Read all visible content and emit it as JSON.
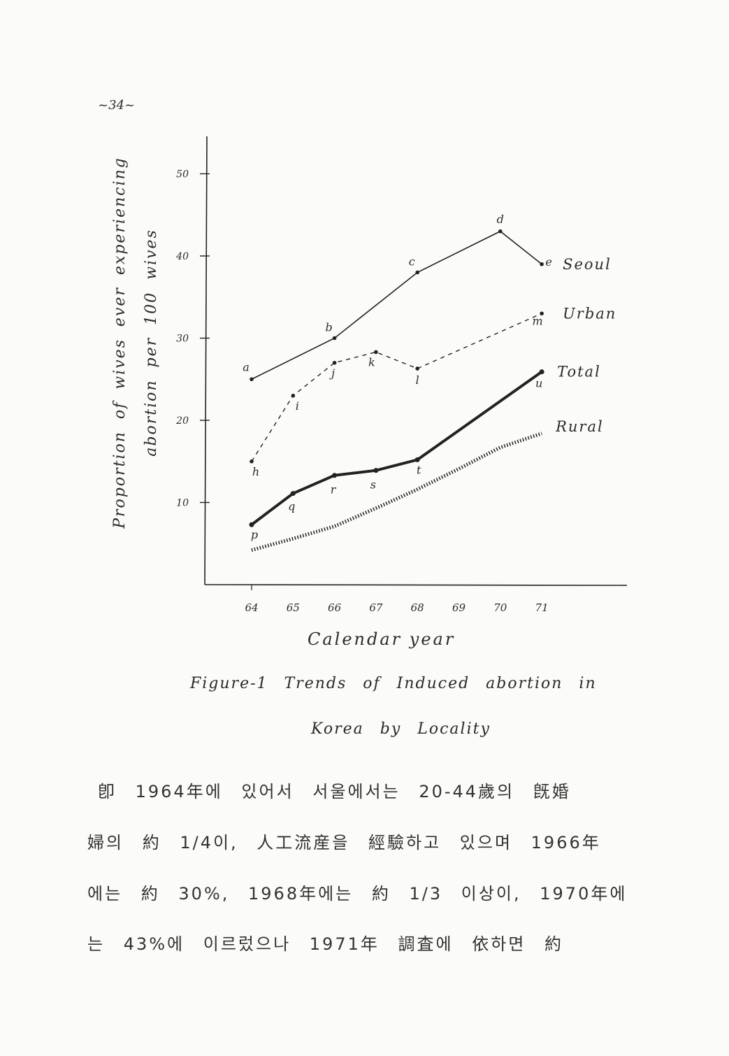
{
  "page_number": "~34~",
  "chart_data": {
    "type": "line",
    "title": "",
    "xlabel": "Calendar year",
    "ylabel": [
      "Proportion of wives ever experiencing",
      "abortion per 100 wives"
    ],
    "x": [
      64,
      65,
      66,
      67,
      68,
      69,
      70,
      71
    ],
    "x_tick_labels": [
      "64",
      "65",
      "66",
      "67",
      "68",
      "69",
      "70",
      "71"
    ],
    "y_ticks": [
      10,
      20,
      30,
      40,
      50
    ],
    "y_tick_labels": [
      "10",
      "20",
      "30",
      "40",
      "50"
    ],
    "ylim": [
      0,
      55
    ],
    "xlim": [
      63,
      73
    ],
    "grid": false,
    "legend": "end-of-line labels",
    "series": [
      {
        "name": "Seoul",
        "style": "solid",
        "points": [
          {
            "x": 64,
            "y": 25,
            "label": "a"
          },
          {
            "x": 66,
            "y": 30,
            "label": "b"
          },
          {
            "x": 68,
            "y": 38,
            "label": "c"
          },
          {
            "x": 70,
            "y": 43,
            "label": "d"
          },
          {
            "x": 71,
            "y": 39,
            "label": "e"
          }
        ]
      },
      {
        "name": "Urban",
        "style": "dashed",
        "points": [
          {
            "x": 64,
            "y": 15,
            "label": "h"
          },
          {
            "x": 65,
            "y": 23,
            "label": "i"
          },
          {
            "x": 66,
            "y": 27,
            "label": "j"
          },
          {
            "x": 67,
            "y": 28.3,
            "label": "k"
          },
          {
            "x": 68,
            "y": 26.3,
            "label": "l"
          },
          {
            "x": 71,
            "y": 33,
            "label": "m"
          }
        ]
      },
      {
        "name": "Total",
        "style": "thick",
        "points": [
          {
            "x": 64,
            "y": 7.3,
            "label": "p"
          },
          {
            "x": 65,
            "y": 11.1,
            "label": "q"
          },
          {
            "x": 66,
            "y": 13.3,
            "label": "r"
          },
          {
            "x": 67,
            "y": 13.9,
            "label": "s"
          },
          {
            "x": 68,
            "y": 15.2,
            "label": "t"
          },
          {
            "x": 71,
            "y": 25.9,
            "label": "u"
          }
        ]
      },
      {
        "name": "Rural",
        "style": "crosses",
        "points": [
          {
            "x": 64,
            "y": 4.2
          },
          {
            "x": 65,
            "y": 5.6
          },
          {
            "x": 66,
            "y": 7.1
          },
          {
            "x": 67,
            "y": 9.3
          },
          {
            "x": 68,
            "y": 11.6
          },
          {
            "x": 69,
            "y": 14.1
          },
          {
            "x": 70,
            "y": 16.7
          },
          {
            "x": 71,
            "y": 18.4
          }
        ]
      }
    ]
  },
  "caption": {
    "line1": "Figure-1  Trends of Induced abortion in",
    "line2": "Korea by Locality"
  },
  "body_text": [
    "卽 1964年에 있어서 서울에서는 20-44歲의 旣婚",
    "婦의 約 1/4이, 人工流産을 經驗하고 있으며 1966年",
    "에는 約 30%, 1968年에는 約 1/3 이상이, 1970年에",
    "는 43%에 이르렀으나 1971年 調査에 依하면 約"
  ]
}
